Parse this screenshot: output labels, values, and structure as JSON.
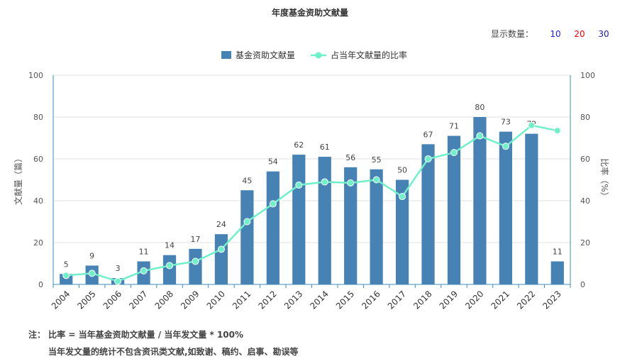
{
  "title": "年度基金资助文献量",
  "show_count": {
    "label": "显示数量：",
    "options": [
      {
        "label": "10",
        "color": "#1a1aff"
      },
      {
        "label": "20",
        "color": "#e60000"
      },
      {
        "label": "30",
        "color": "#1a1aa0"
      }
    ]
  },
  "notes": {
    "line1": "注：  比率 = 当年基金资助文献量 / 当年发文量 * 100%",
    "line2": "当年发文量的统计不包含资讯类文献,如致谢、稿约、启事、勘误等"
  },
  "chart_data": {
    "type": "bar",
    "categories": [
      "2004",
      "2005",
      "2006",
      "2007",
      "2008",
      "2009",
      "2010",
      "2011",
      "2012",
      "2013",
      "2014",
      "2015",
      "2016",
      "2017",
      "2018",
      "2019",
      "2020",
      "2021",
      "2022",
      "2023"
    ],
    "series": [
      {
        "name": "基金资助文献量",
        "type": "bar",
        "color": "#4682b4",
        "values": [
          5,
          9,
          3,
          11,
          14,
          17,
          24,
          45,
          54,
          62,
          61,
          56,
          55,
          50,
          67,
          71,
          80,
          73,
          72,
          11
        ]
      },
      {
        "name": "占当年文献量的比率",
        "type": "line",
        "color": "#6ff0c8",
        "values": [
          4.3,
          5.3,
          1.5,
          6.5,
          9.0,
          11.0,
          16.8,
          30.0,
          38.5,
          47.5,
          49.0,
          48.5,
          50.0,
          42.0,
          60.0,
          63.0,
          71.0,
          66.0,
          76.0,
          73.5
        ]
      }
    ],
    "ylabel_left": "文献量（篇）",
    "ylabel_right": "比率（%）",
    "ylim": [
      0,
      100
    ],
    "yticks": [
      0,
      20,
      40,
      60,
      80,
      100
    ],
    "grid": true,
    "legend_position": "top-center"
  }
}
